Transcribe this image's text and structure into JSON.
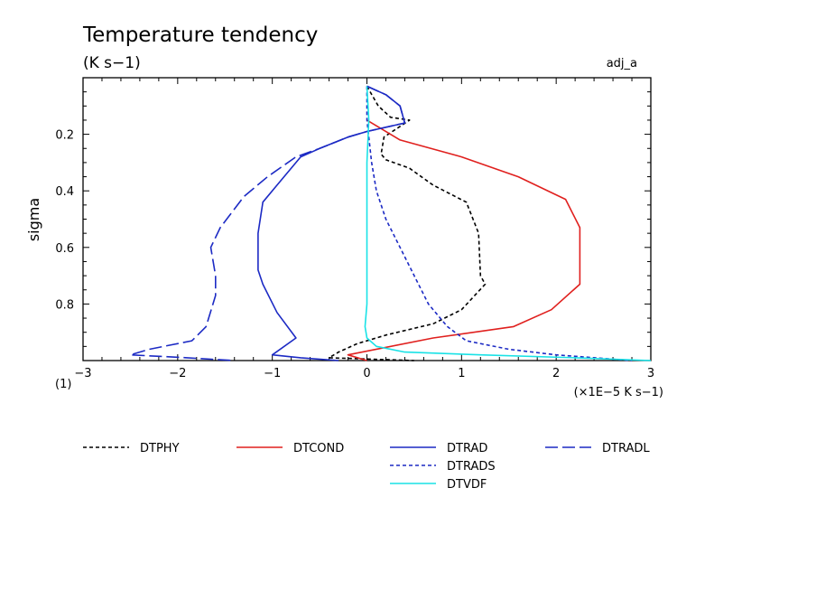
{
  "chart_data": {
    "type": "line",
    "title": "Temperature tendency",
    "subtitle": "(K s−1)",
    "tag": "adj_a",
    "ylabel": "sigma",
    "xlabel": "(×1E−5 K s−1)",
    "corner_label": "(1)",
    "xlim": [
      -3,
      3
    ],
    "ylim": [
      0.0,
      1.0
    ],
    "y_inverted": true,
    "x_ticks": [
      -3,
      -2,
      -1,
      0,
      1,
      2,
      3
    ],
    "x_tick_labels": [
      "−3",
      "−2",
      "−1",
      "0",
      "1",
      "2",
      "3"
    ],
    "y_ticks": [
      0.2,
      0.4,
      0.6,
      0.8
    ],
    "y_tick_labels": [
      "0.2",
      "0.4",
      "0.6",
      "0.8"
    ],
    "grid": false,
    "legend_position": "bottom",
    "series": [
      {
        "name": "DTPHY",
        "color": "#000000",
        "dash": "short",
        "points": [
          [
            0.0,
            0.03
          ],
          [
            0.12,
            0.1
          ],
          [
            0.25,
            0.14
          ],
          [
            0.45,
            0.15
          ],
          [
            0.18,
            0.21
          ],
          [
            0.15,
            0.27
          ],
          [
            0.2,
            0.29
          ],
          [
            0.45,
            0.32
          ],
          [
            0.7,
            0.38
          ],
          [
            1.05,
            0.44
          ],
          [
            1.18,
            0.55
          ],
          [
            1.2,
            0.7
          ],
          [
            1.25,
            0.73
          ],
          [
            1.0,
            0.82
          ],
          [
            0.7,
            0.87
          ],
          [
            0.2,
            0.91
          ],
          [
            -0.1,
            0.94
          ],
          [
            -0.3,
            0.97
          ],
          [
            -0.4,
            0.99
          ],
          [
            0.5,
            1.0
          ]
        ]
      },
      {
        "name": "DTCOND",
        "color": "#e0201e",
        "dash": "solid",
        "points": [
          [
            0.0,
            0.15
          ],
          [
            0.35,
            0.22
          ],
          [
            1.0,
            0.28
          ],
          [
            1.6,
            0.35
          ],
          [
            2.1,
            0.43
          ],
          [
            2.25,
            0.53
          ],
          [
            2.25,
            0.73
          ],
          [
            1.95,
            0.82
          ],
          [
            1.55,
            0.88
          ],
          [
            0.7,
            0.92
          ],
          [
            -0.2,
            0.98
          ],
          [
            0.0,
            1.0
          ]
        ]
      },
      {
        "name": "DTRAD",
        "color": "#1c2ac4",
        "dash": "solid",
        "points": [
          [
            0.0,
            0.03
          ],
          [
            0.2,
            0.06
          ],
          [
            0.35,
            0.1
          ],
          [
            0.4,
            0.16
          ],
          [
            0.0,
            0.19
          ],
          [
            -0.2,
            0.21
          ],
          [
            -0.5,
            0.25
          ],
          [
            -0.7,
            0.28
          ],
          [
            -0.95,
            0.38
          ],
          [
            -1.1,
            0.44
          ],
          [
            -1.15,
            0.55
          ],
          [
            -1.15,
            0.68
          ],
          [
            -1.1,
            0.73
          ],
          [
            -0.95,
            0.83
          ],
          [
            -0.75,
            0.92
          ],
          [
            -1.0,
            0.98
          ],
          [
            -0.7,
            0.99
          ],
          [
            -0.3,
            1.0
          ]
        ]
      },
      {
        "name": "DTRADL",
        "color": "#1c2ac4",
        "dash": "long",
        "points": [
          [
            0.0,
            0.03
          ],
          [
            0.2,
            0.06
          ],
          [
            0.35,
            0.1
          ],
          [
            0.4,
            0.16
          ],
          [
            0.0,
            0.19
          ],
          [
            -0.2,
            0.21
          ],
          [
            -0.5,
            0.25
          ],
          [
            -0.75,
            0.28
          ],
          [
            -1.05,
            0.35
          ],
          [
            -1.3,
            0.42
          ],
          [
            -1.55,
            0.53
          ],
          [
            -1.65,
            0.6
          ],
          [
            -1.6,
            0.7
          ],
          [
            -1.6,
            0.77
          ],
          [
            -1.7,
            0.88
          ],
          [
            -1.85,
            0.93
          ],
          [
            -2.3,
            0.96
          ],
          [
            -2.5,
            0.98
          ],
          [
            -1.9,
            0.99
          ],
          [
            -1.4,
            1.0
          ]
        ]
      },
      {
        "name": "DTRADS",
        "color": "#1c2ac4",
        "dash": "short",
        "points": [
          [
            0.0,
            0.03
          ],
          [
            0.0,
            0.15
          ],
          [
            0.05,
            0.3
          ],
          [
            0.1,
            0.4
          ],
          [
            0.2,
            0.5
          ],
          [
            0.35,
            0.6
          ],
          [
            0.5,
            0.7
          ],
          [
            0.65,
            0.8
          ],
          [
            0.85,
            0.88
          ],
          [
            1.05,
            0.93
          ],
          [
            1.5,
            0.96
          ],
          [
            2.0,
            0.98
          ],
          [
            2.8,
            1.0
          ]
        ]
      },
      {
        "name": "DTVDF",
        "color": "#19e2e6",
        "dash": "solid",
        "points": [
          [
            0.0,
            0.03
          ],
          [
            0.02,
            0.15
          ],
          [
            0.0,
            0.3
          ],
          [
            0.0,
            0.5
          ],
          [
            0.0,
            0.7
          ],
          [
            0.0,
            0.8
          ],
          [
            -0.02,
            0.88
          ],
          [
            0.0,
            0.92
          ],
          [
            0.1,
            0.95
          ],
          [
            0.4,
            0.97
          ],
          [
            1.2,
            0.98
          ],
          [
            2.2,
            0.99
          ],
          [
            3.0,
            1.0
          ]
        ]
      }
    ]
  }
}
